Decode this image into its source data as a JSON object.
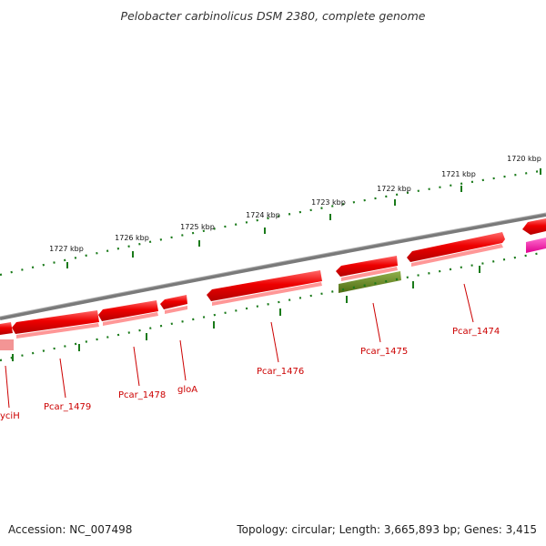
{
  "title": "Pelobacter carbinolicus DSM 2380, complete genome",
  "footer": {
    "accession": "Accession: NC_007498",
    "topology": "Topology: circular; Length: 3,665,893 bp; Genes: 3,415"
  },
  "colors": {
    "forward_gene": "#ee0000",
    "forward_gene_dark": "#b30000",
    "forward_gene_light": "#ff5a5a",
    "reverse_gene_shadow": "#ff8c8c",
    "rna_gene": "#6b8e23",
    "rna_gene_dark": "#4e6b13",
    "pink_gene": "#ff2fae",
    "backbone": "#7a7a7a",
    "scale_ticks": "#1a7a1a",
    "label_text": "#cc0000"
  },
  "scale_labels": {
    "k1720": "1720 kbp",
    "k1721": "1721 kbp",
    "k1722": "1722 kbp",
    "k1723": "1723 kbp",
    "k1724": "1724 kbp",
    "k1725": "1725 kbp",
    "k1726": "1726 kbp",
    "k1727": "1727 kbp"
  },
  "genes": {
    "yciH": "yciH",
    "Pcar_1479": "Pcar_1479",
    "Pcar_1478": "Pcar_1478",
    "gloA": "gloA",
    "Pcar_1476": "Pcar_1476",
    "Pcar_1475": "Pcar_1475",
    "Pcar_1474": "Pcar_1474"
  }
}
